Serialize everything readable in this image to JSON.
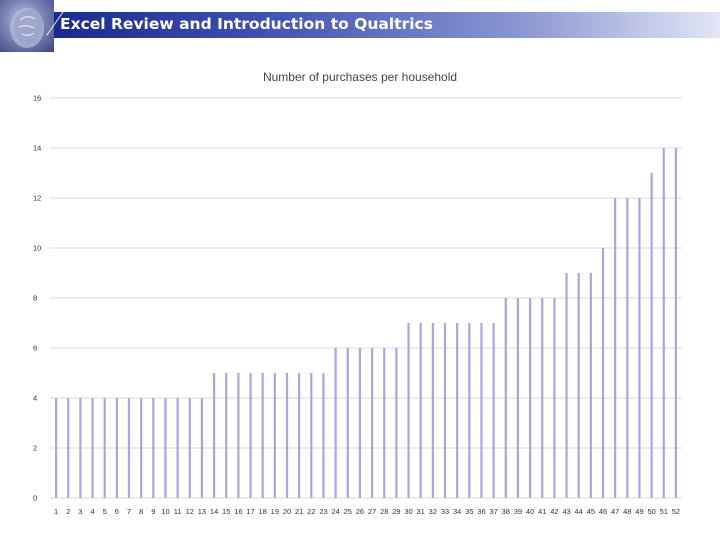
{
  "slide": {
    "title": "Excel Review and Introduction to Qualtrics",
    "logo_icon": "marble-bust-icon"
  },
  "colors": {
    "title_bar_start": "#1a2a8c",
    "title_bar_end": "#e3e6f5",
    "bar_fill": "#a7a7e0",
    "grid": "#d9d9d9"
  },
  "chart_data": {
    "type": "bar",
    "title": "Number of purchases per household",
    "xlabel": "",
    "ylabel": "",
    "ylim": [
      0,
      16
    ],
    "yticks": [
      0,
      2,
      4,
      6,
      8,
      10,
      12,
      14,
      16
    ],
    "grid": true,
    "legend": "none",
    "categories": [
      "1",
      "2",
      "3",
      "4",
      "5",
      "6",
      "7",
      "8",
      "9",
      "10",
      "11",
      "12",
      "13",
      "14",
      "15",
      "16",
      "17",
      "18",
      "19",
      "20",
      "21",
      "22",
      "23",
      "24",
      "25",
      "26",
      "27",
      "28",
      "29",
      "30",
      "31",
      "32",
      "33",
      "34",
      "35",
      "36",
      "37",
      "38",
      "39",
      "40",
      "41",
      "42",
      "43",
      "44",
      "45",
      "46",
      "47",
      "48",
      "49",
      "50",
      "51",
      "52"
    ],
    "values": [
      4,
      4,
      4,
      4,
      4,
      4,
      4,
      4,
      4,
      4,
      4,
      4,
      4,
      5,
      5,
      5,
      5,
      5,
      5,
      5,
      5,
      5,
      5,
      6,
      6,
      6,
      6,
      6,
      6,
      7,
      7,
      7,
      7,
      7,
      7,
      7,
      7,
      8,
      8,
      8,
      8,
      8,
      9,
      9,
      9,
      10,
      12,
      12,
      12,
      13,
      14,
      14
    ]
  }
}
